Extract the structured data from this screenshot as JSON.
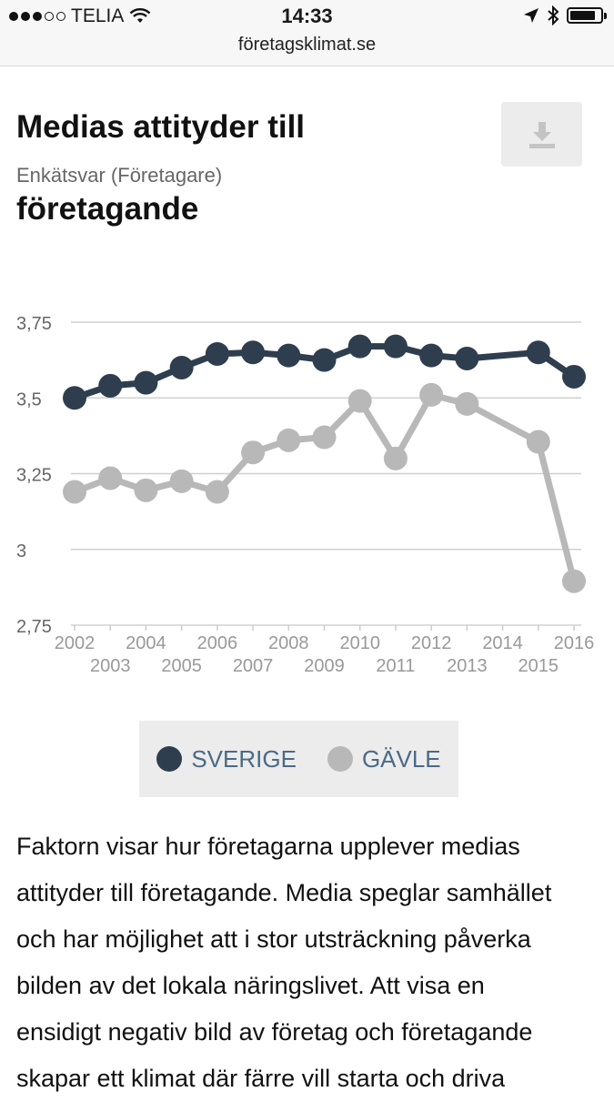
{
  "status_bar": {
    "carrier": "TELIA",
    "time": "14:33",
    "battery_level": 0.85,
    "url": "företagsklimat.se"
  },
  "header": {
    "title": "Medias attityder till",
    "subtitle": "Enkätsvar (Företagare)",
    "title_line2": "företagande",
    "download_icon": "download-icon"
  },
  "legend": {
    "items": [
      {
        "label": "SVERIGE",
        "color": "#2f3e4f"
      },
      {
        "label": "GÄVLE",
        "color": "#b8b8b8"
      }
    ]
  },
  "chart_data": {
    "type": "line",
    "x": [
      2002,
      2003,
      2004,
      2005,
      2006,
      2007,
      2008,
      2009,
      2010,
      2011,
      2012,
      2013,
      2015,
      2016
    ],
    "x_tick_labels": [
      "2002",
      "2003",
      "2004",
      "2005",
      "2006",
      "2007",
      "2008",
      "2009",
      "2010",
      "2011",
      "2012",
      "2013",
      "2014",
      "2015",
      "2016"
    ],
    "y_tick_labels": [
      "3,75",
      "3,5",
      "3,25",
      "3",
      "2,75"
    ],
    "y_ticks": [
      3.75,
      3.5,
      3.25,
      3.0,
      2.75
    ],
    "ylim": [
      2.75,
      3.75
    ],
    "xlim": [
      2002,
      2016
    ],
    "grid": true,
    "series": [
      {
        "name": "SVERIGE",
        "color": "#2f3e4f",
        "values": [
          3.5,
          3.54,
          3.55,
          3.6,
          3.645,
          3.65,
          3.64,
          3.625,
          3.67,
          3.67,
          3.64,
          3.63,
          3.65,
          3.57
        ]
      },
      {
        "name": "GÄVLE",
        "color": "#b8b8b8",
        "values": [
          3.19,
          3.235,
          3.195,
          3.225,
          3.19,
          3.32,
          3.36,
          3.37,
          3.49,
          3.3,
          3.51,
          3.48,
          3.355,
          2.895
        ]
      }
    ]
  },
  "body_text": [
    "Faktorn visar hur företagarna upplever medias",
    "attityder till företagande. Media speglar samhället",
    "och har möjlighet att i stor utsträckning påverka",
    "bilden av det lokala näringslivet. Att visa en",
    "ensidigt negativ bild av företag och företagande",
    "skapar ett klimat där färre vill starta och driva"
  ]
}
